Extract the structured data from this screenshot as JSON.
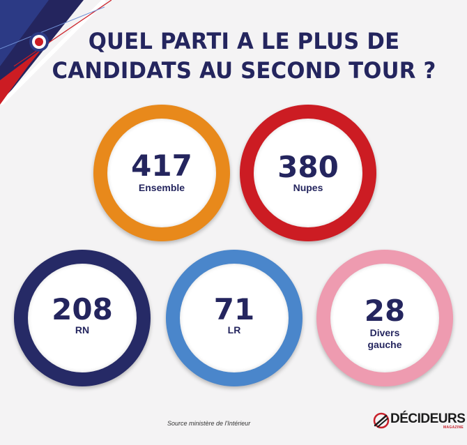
{
  "title": {
    "line1": "QUEL PARTI A LE PLUS DE",
    "line2": "CANDIDATS AU SECOND TOUR ?"
  },
  "parties": [
    {
      "count": "417",
      "label": "Ensemble",
      "color": "#e8891b"
    },
    {
      "count": "380",
      "label": "Nupes",
      "color": "#cc1c23"
    },
    {
      "count": "208",
      "label": "RN",
      "color": "#262a66"
    },
    {
      "count": "71",
      "label": "LR",
      "color": "#4a86cb"
    },
    {
      "count": "28",
      "label_line1": "Divers",
      "label_line2": "gauche",
      "color": "#ee9bb0"
    }
  ],
  "source": "Source ministère de l'Intérieur",
  "logo": {
    "name": "DÉCIDEURS",
    "sub": "MAGAZINE"
  },
  "colors": {
    "title": "#24255e",
    "background": "#f4f3f4",
    "accent_red": "#c8202a"
  },
  "icons": [
    "cockade-icon",
    "decideurs-logo-icon"
  ]
}
